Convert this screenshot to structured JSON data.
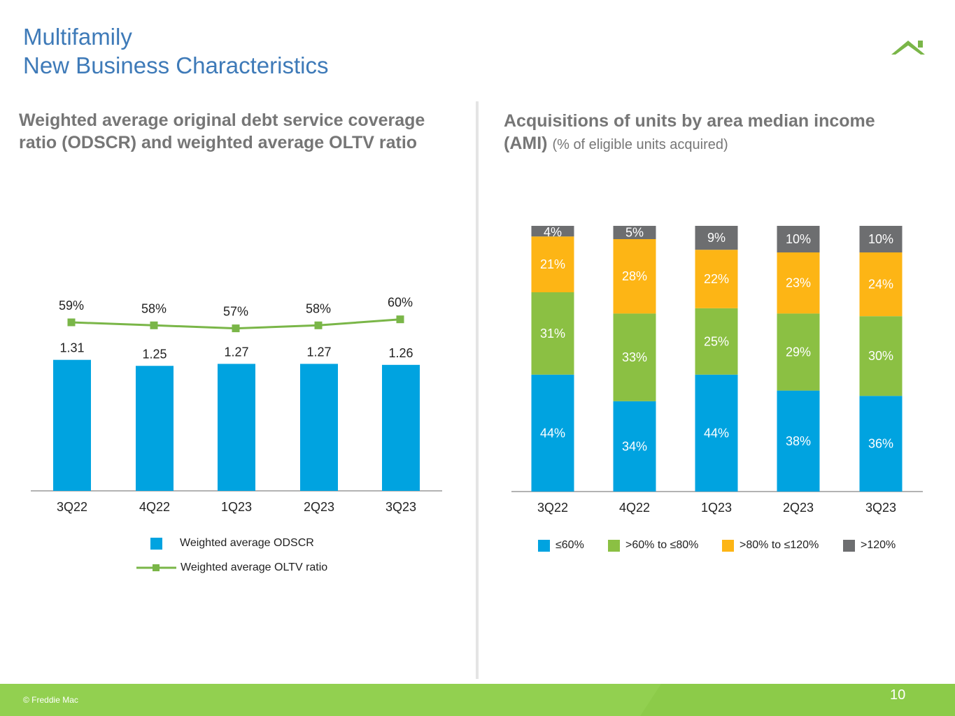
{
  "header": {
    "title_line1": "Multifamily",
    "title_line2": "New Business Characteristics"
  },
  "colors": {
    "title": "#3e7ab8",
    "blue": "#00a3e0",
    "green": "#8bc043",
    "yellow": "#fdb515",
    "gray": "#6d6e70",
    "line_green": "#7ab648",
    "footer": "#92d050"
  },
  "left_panel": {
    "title_line1": "Weighted average original debt service coverage",
    "title_line2": "ratio (ODSCR) and weighted average OLTV ratio",
    "legend_odscr": "Weighted average ODSCR",
    "legend_oltv": "Weighted average OLTV ratio"
  },
  "right_panel": {
    "title_bold_line1": "Acquisitions of units by area median income",
    "title_bold_line2": "(AMI)",
    "title_sub": "(% of eligible units acquired)"
  },
  "chart_data": [
    {
      "type": "bar",
      "title": "Weighted average original debt service coverage ratio (ODSCR) and weighted average OLTV ratio",
      "categories": [
        "3Q22",
        "4Q22",
        "1Q23",
        "2Q23",
        "3Q23"
      ],
      "series": [
        {
          "name": "Weighted average ODSCR",
          "kind": "bar",
          "values": [
            1.31,
            1.25,
            1.27,
            1.27,
            1.26
          ],
          "labels": [
            "1.31",
            "1.25",
            "1.27",
            "1.27",
            "1.26"
          ]
        },
        {
          "name": "Weighted average OLTV ratio",
          "kind": "line",
          "values": [
            59,
            58,
            57,
            58,
            60
          ],
          "labels": [
            "59%",
            "58%",
            "57%",
            "58%",
            "60%"
          ]
        }
      ],
      "ylim": [
        0,
        1.4
      ],
      "xlabel": "",
      "ylabel": ""
    },
    {
      "type": "bar",
      "stacked": true,
      "title": "Acquisitions of units by area median income (AMI) (% of eligible units acquired)",
      "categories": [
        "3Q22",
        "4Q22",
        "1Q23",
        "2Q23",
        "3Q23"
      ],
      "series": [
        {
          "name": "≤60%",
          "values": [
            44,
            34,
            44,
            38,
            36
          ],
          "labels": [
            "44%",
            "34%",
            "44%",
            "38%",
            "36%"
          ]
        },
        {
          "name": ">60% to ≤80%",
          "values": [
            31,
            33,
            25,
            29,
            30
          ],
          "labels": [
            "31%",
            "33%",
            "25%",
            "29%",
            "30%"
          ]
        },
        {
          "name": ">80% to ≤120%",
          "values": [
            21,
            28,
            22,
            23,
            24
          ],
          "labels": [
            "21%",
            "28%",
            "22%",
            "23%",
            "24%"
          ]
        },
        {
          "name": ">120%",
          "values": [
            4,
            5,
            9,
            10,
            10
          ],
          "labels": [
            "4%",
            "5%",
            "9%",
            "10%",
            "10%"
          ]
        }
      ],
      "ylim": [
        0,
        100
      ],
      "xlabel": "",
      "ylabel": ""
    }
  ],
  "footer": {
    "copyright": "© Freddie Mac",
    "page_number": "10"
  }
}
